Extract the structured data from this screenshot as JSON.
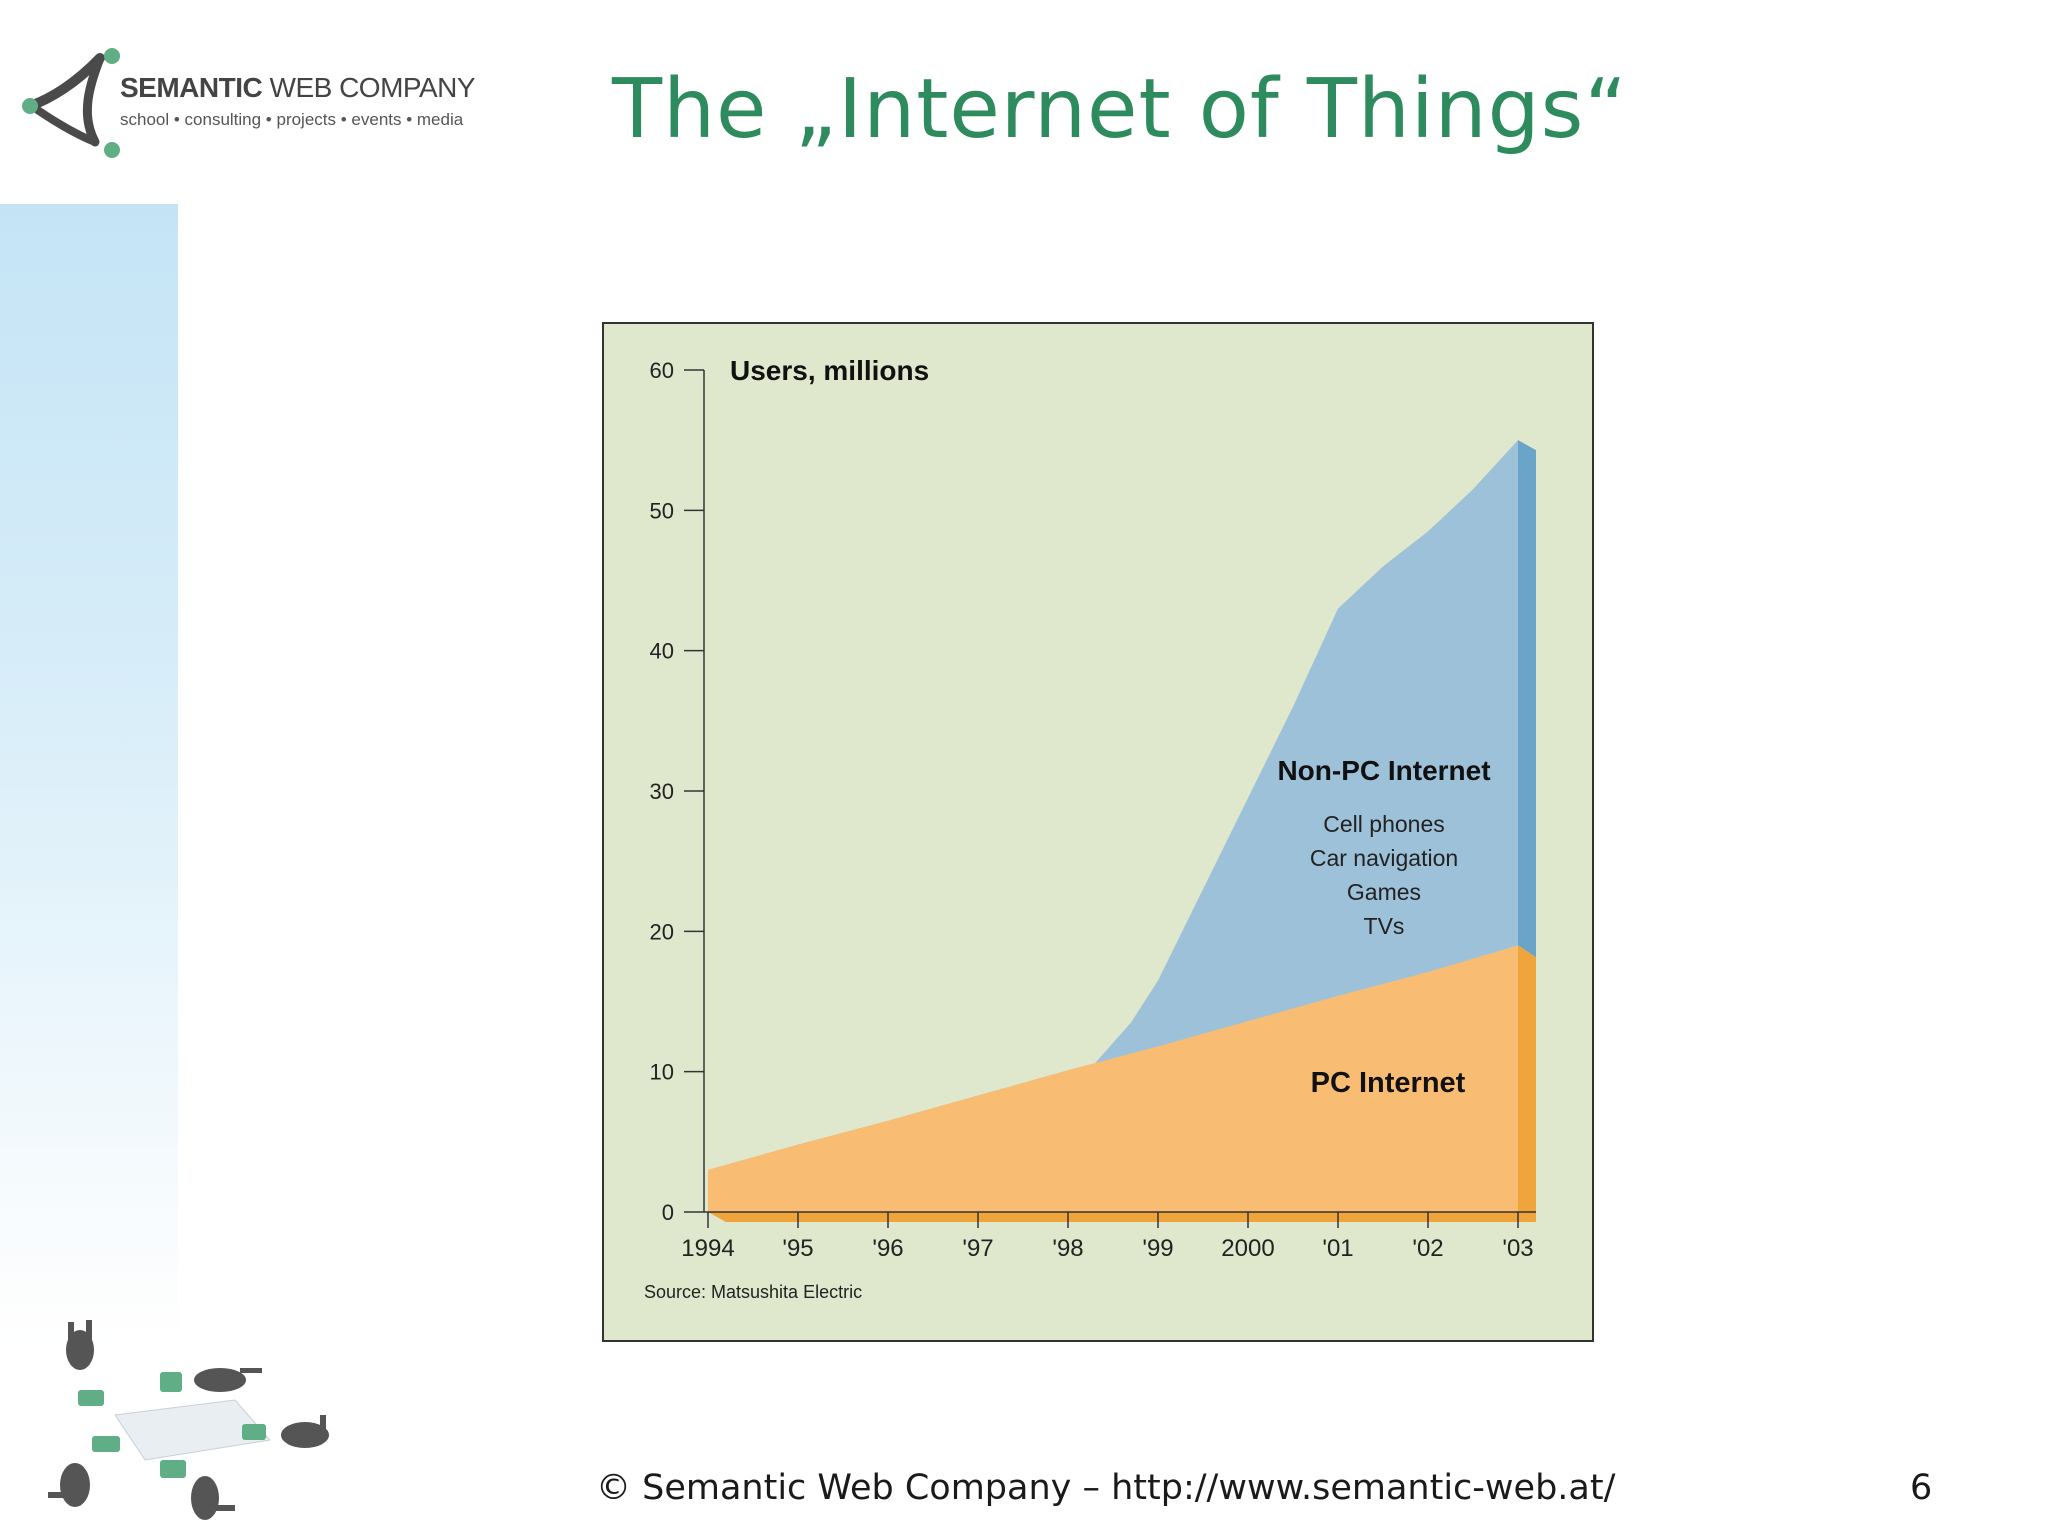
{
  "header": {
    "logo_name_bold": "SEMANTIC",
    "logo_name_rest": " WEB COMPANY",
    "logo_tagline": "school • consulting • projects • events • media",
    "title": "The „Internet of Things“"
  },
  "footer": {
    "text": "© Semantic Web Company – http://www.semantic-web.at/",
    "page_number": "6"
  },
  "colors": {
    "title": "#2e8b5e",
    "chart_background": "#dfe8cc",
    "pc_internet": "#f8bd73",
    "pc_internet_dark": "#f0a43c",
    "non_pc_internet": "#9dc1d9",
    "non_pc_internet_dark": "#6aa4c9"
  },
  "chart_data": {
    "type": "area",
    "stacked": true,
    "title": "",
    "ylabel": "Users, millions",
    "xlabel": "",
    "ylim": [
      0,
      60
    ],
    "yticks": [
      0,
      10,
      20,
      30,
      40,
      50,
      60
    ],
    "xticks": [
      "1994",
      "'95",
      "'96",
      "'97",
      "'98",
      "'99",
      "2000",
      "'01",
      "'02",
      "'03"
    ],
    "grid": false,
    "source": "Source: Matsushita Electric",
    "series": [
      {
        "name": "PC Internet",
        "label_lines": [],
        "x": [
          1994,
          1995,
          1996,
          1997,
          1998,
          1999,
          2000,
          2001,
          2002,
          2003
        ],
        "values": [
          3,
          4.8,
          6.5,
          8.3,
          10.1,
          11.8,
          13.6,
          15.4,
          17.1,
          19
        ]
      },
      {
        "name": "Non-PC Internet",
        "label_lines": [
          "Cell phones",
          "Car navigation",
          "Games",
          "TVs"
        ],
        "x": [
          1994,
          1995,
          1996,
          1997,
          1998,
          1998.3,
          1998.7,
          1999,
          1999.5,
          2000,
          2000.5,
          2001,
          2001.5,
          2002,
          2002.5,
          2003
        ],
        "totals": [
          3,
          4.8,
          6.5,
          8.3,
          10.1,
          10.6,
          13.5,
          16.5,
          23,
          29.5,
          36,
          43,
          46,
          48.5,
          51.5,
          55
        ]
      }
    ]
  }
}
